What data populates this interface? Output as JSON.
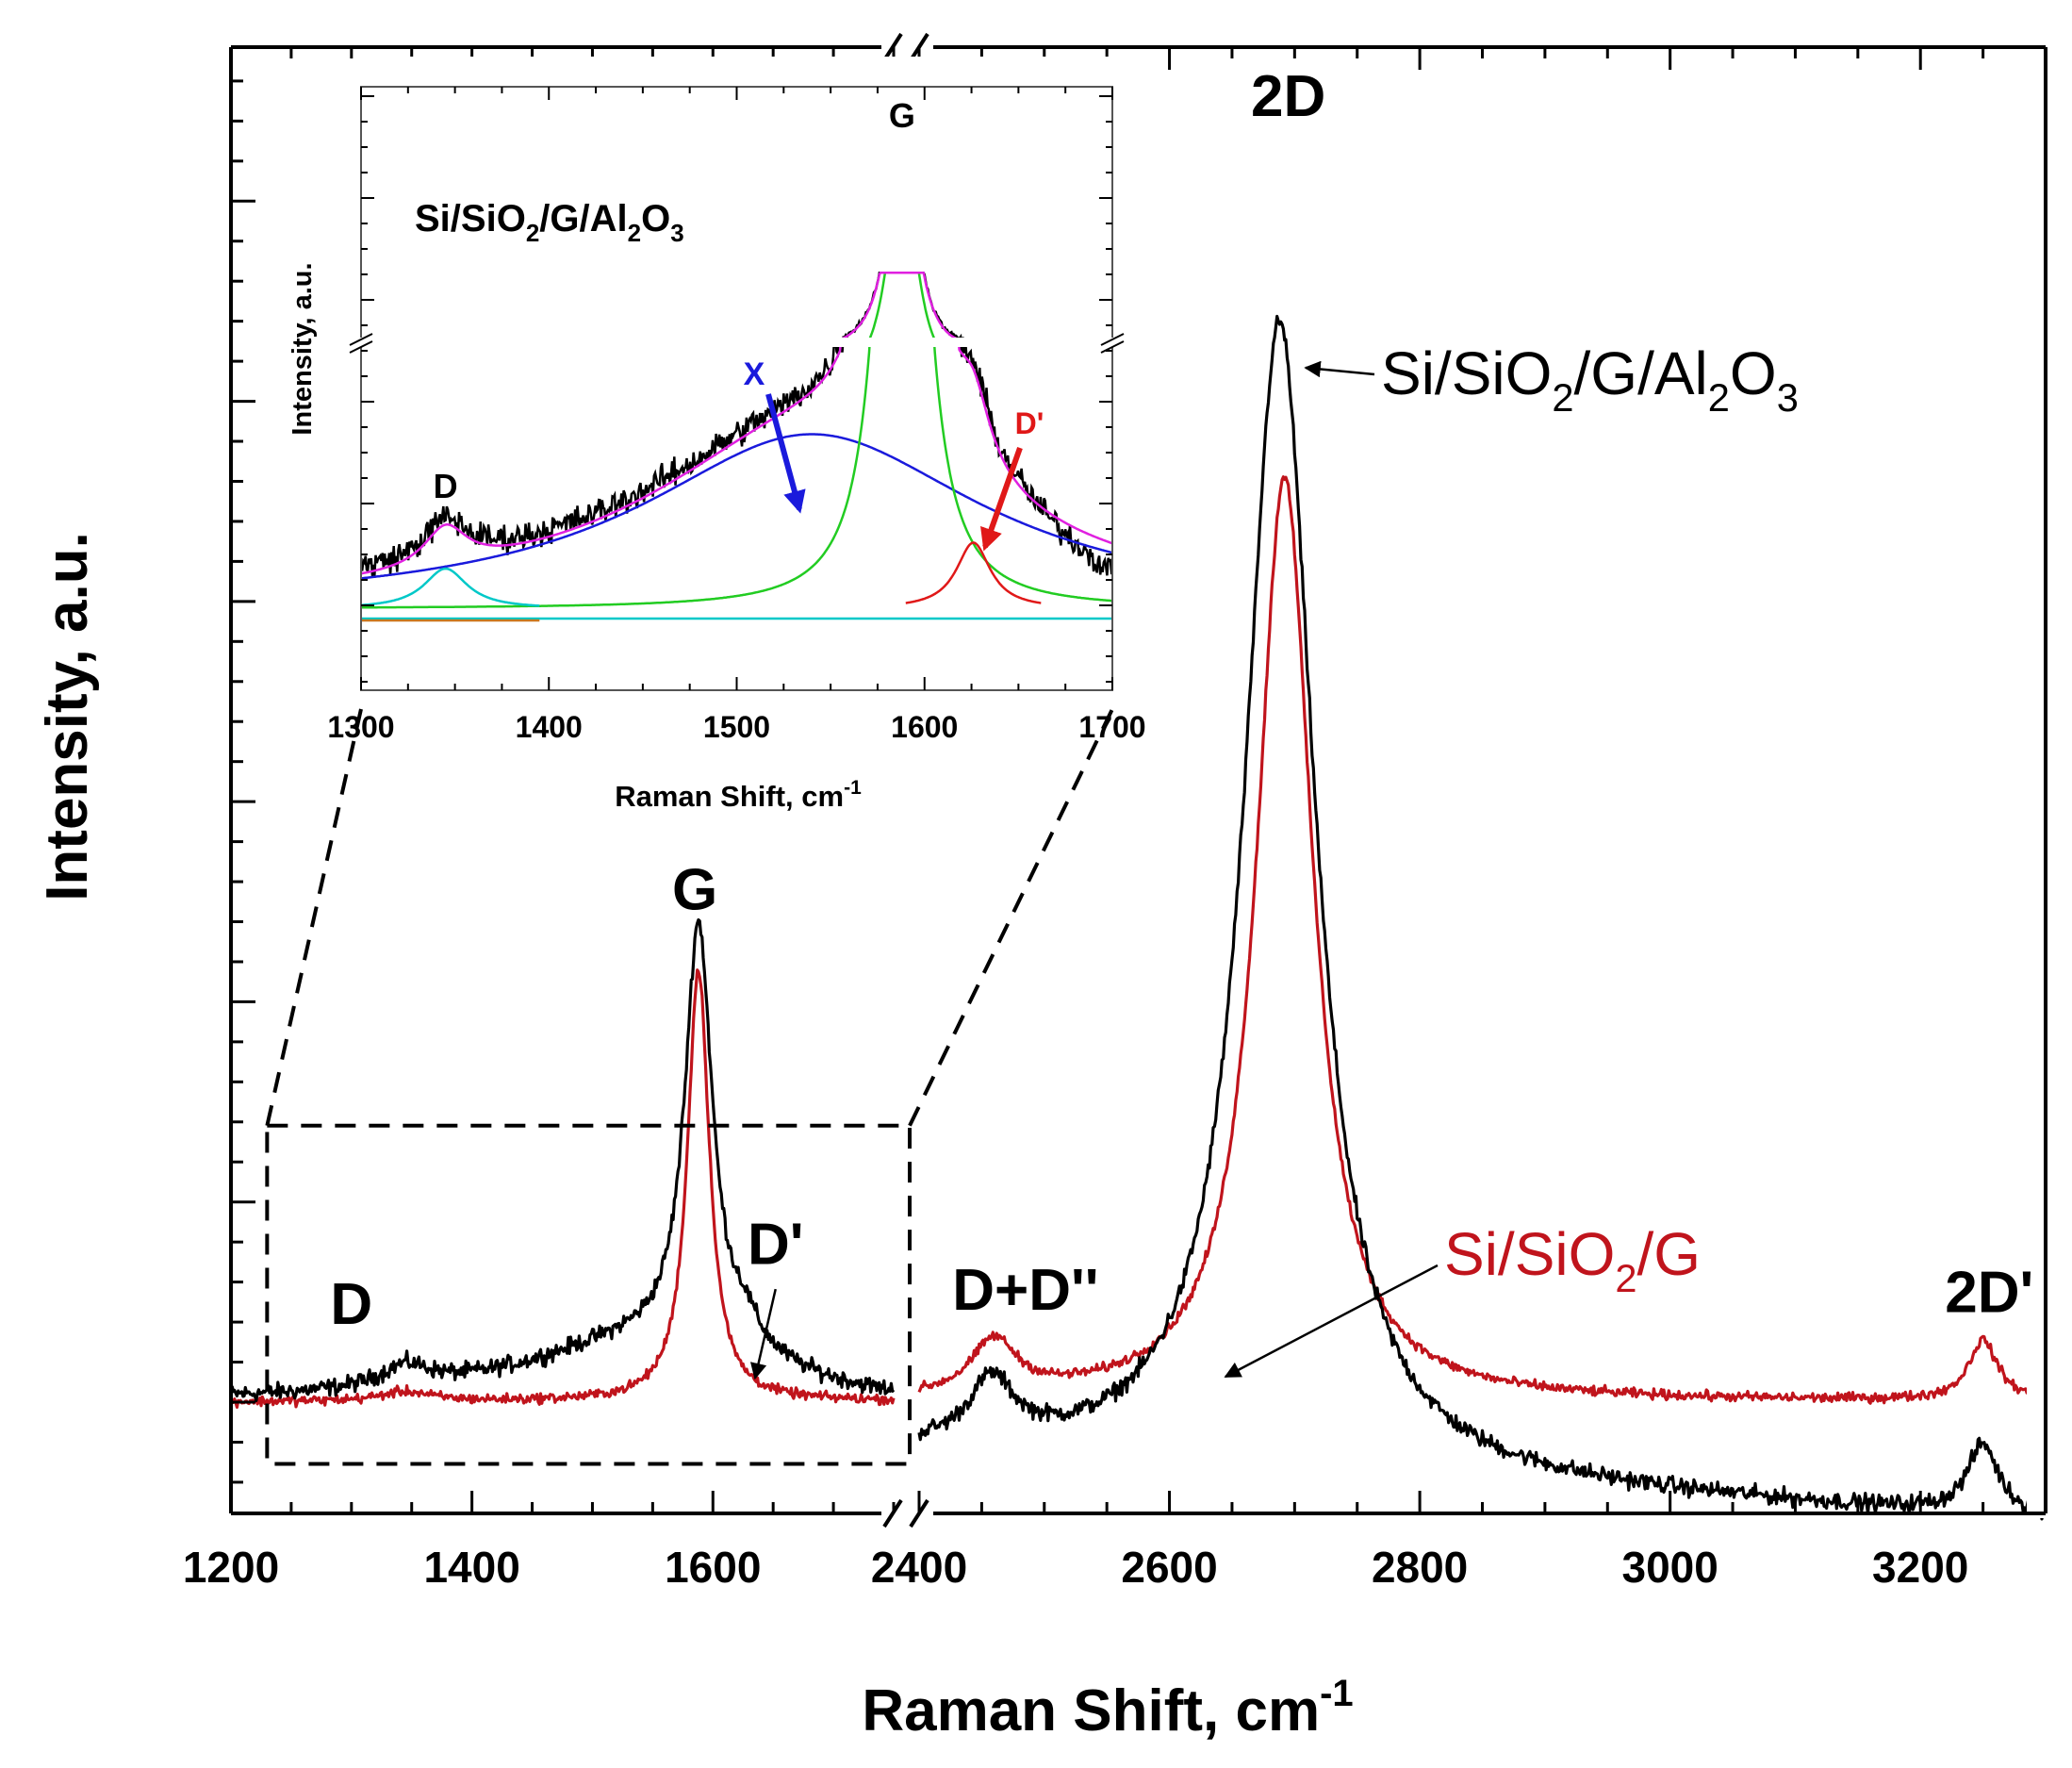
{
  "chart_data": [
    {
      "type": "line",
      "role": "main",
      "xlabel": "Raman Shift, cm",
      "xlabel_sup": "-1",
      "ylabel": "Intensity, a.u.",
      "x_segments": [
        {
          "range": [
            1200,
            1750
          ],
          "ticks": [
            1200,
            1400,
            1600
          ]
        },
        {
          "range": [
            2400,
            3300
          ],
          "ticks": [
            2400,
            2600,
            2800,
            3000,
            3200
          ]
        }
      ],
      "y_range": [
        -0.05,
        1.05
      ],
      "series": [
        {
          "name": "Si/SiO2/G/Al2O3",
          "color": "#000000",
          "baseline": 0.0,
          "noise": 0.007,
          "peaks": [
            {
              "label": "D",
              "center": 1345,
              "amp": 0.018,
              "width": 25
            },
            {
              "label": "X",
              "center": 1540,
              "amp": 0.048,
              "width": 120
            },
            {
              "label": "G",
              "center": 1588,
              "amp": 0.355,
              "width": 14
            },
            {
              "label": "D'",
              "center": 1626,
              "amp": 0.022,
              "width": 15
            },
            {
              "label": "D+D''",
              "center": 2458,
              "amp": 0.052,
              "width": 22
            },
            {
              "label": "2D",
              "center": 2688,
              "amp": 0.96,
              "width": 34
            },
            {
              "label": "2D'",
              "center": 3250,
              "amp": 0.058,
              "width": 15
            }
          ]
        },
        {
          "name": "Si/SiO2/G",
          "color": "#c0141c",
          "baseline": 0.0,
          "noise": 0.004,
          "peaks": [
            {
              "label": "D",
              "center": 1345,
              "amp": 0.008,
              "width": 25
            },
            {
              "label": "G",
              "center": 1588,
              "amp": 0.36,
              "width": 11
            },
            {
              "label": "D+D''",
              "center": 2460,
              "amp": 0.045,
              "width": 22
            },
            {
              "label": "2D",
              "center": 2692,
              "amp": 0.77,
              "width": 27
            },
            {
              "label": "2D'",
              "center": 3250,
              "amp": 0.05,
              "width": 14
            }
          ]
        }
      ],
      "peak_labels": [
        {
          "text": "D",
          "x": 1300,
          "y": 0.065
        },
        {
          "text": "G",
          "x": 1585,
          "y": 0.41
        },
        {
          "text": "D'",
          "x": 1652,
          "y": 0.115
        },
        {
          "text": "D+D''",
          "x": 2485,
          "y": 0.077
        },
        {
          "text": "2D",
          "x": 2695,
          "y": 1.07
        },
        {
          "text": "2D'",
          "x": 3255,
          "y": 0.075
        }
      ],
      "series_labels": [
        {
          "parts": [
            [
              "Si/SiO",
              "n"
            ],
            [
              "2",
              "sub"
            ],
            [
              "/G/Al",
              "n"
            ],
            [
              "2",
              "sub"
            ],
            [
              "O",
              "n"
            ],
            [
              "3",
              "sub"
            ]
          ],
          "color": "#000000"
        },
        {
          "parts": [
            [
              "Si/SiO",
              "n"
            ],
            [
              "2",
              "sub"
            ],
            [
              "/G",
              "n"
            ]
          ],
          "color": "#c0141c"
        }
      ],
      "zoom_region": {
        "x": [
          1230,
          2400
        ],
        "y": [
          -0.02,
          0.23
        ]
      }
    },
    {
      "type": "line",
      "role": "inset",
      "title_parts": [
        [
          "Si/SiO",
          "n"
        ],
        [
          "2",
          "sub"
        ],
        [
          "/G/Al",
          "n"
        ],
        [
          "2",
          "sub"
        ],
        [
          "O",
          "n"
        ],
        [
          "3",
          "sub"
        ]
      ],
      "xlabel": "Raman Shift, cm",
      "xlabel_sup": "-1",
      "ylabel": "Intensity, a.u.",
      "xlim": [
        1300,
        1700
      ],
      "x_ticks": [
        1300,
        1400,
        1500,
        1600,
        1700
      ],
      "y_break": true,
      "components": [
        {
          "name": "measured",
          "color": "#000000"
        },
        {
          "name": "cumulative fit",
          "color": "#e020e0"
        },
        {
          "name": "D",
          "color": "#00c8c8",
          "center": 1345,
          "amp": 0.085,
          "width": 14
        },
        {
          "name": "X",
          "color": "#1a1adc",
          "center": 1540,
          "amp": 0.37,
          "width": 110
        },
        {
          "name": "G",
          "color": "#22cc22",
          "center": 1588,
          "amp": 2.6,
          "width": 9
        },
        {
          "name": "D'",
          "color": "#e01818",
          "center": 1626,
          "amp": 0.14,
          "width": 11
        },
        {
          "name": "baseline",
          "color": "#00c8c8"
        }
      ],
      "annotations": [
        {
          "text": "D",
          "color": "#000000"
        },
        {
          "text": "G",
          "color": "#000000"
        },
        {
          "text": "X",
          "color": "#1a1adc"
        },
        {
          "text": "D'",
          "color": "#e01818"
        }
      ]
    }
  ]
}
